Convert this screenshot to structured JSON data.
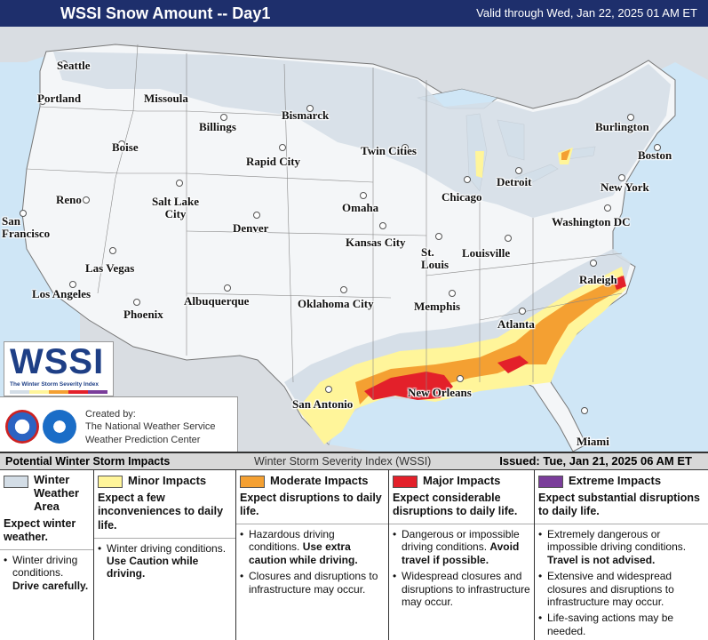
{
  "header": {
    "title": "WSSI Snow Amount -- Day1",
    "valid": "Valid through Wed, Jan 22, 2025 01 AM ET"
  },
  "colors": {
    "header_bg": "#1e2f6c",
    "winter_weather_area": "#d3dde6",
    "minor": "#fff59a",
    "moderate": "#f4a032",
    "major": "#e3202a",
    "extreme": "#7a3d9a",
    "water": "#cfe6f6",
    "land": "#f4f6f8"
  },
  "cities": [
    {
      "id": "seattle",
      "label": "Seattle"
    },
    {
      "id": "portland",
      "label": "Portland"
    },
    {
      "id": "missoula",
      "label": "Missoula"
    },
    {
      "id": "bismarck",
      "label": "Bismarck"
    },
    {
      "id": "billings",
      "label": "Billings"
    },
    {
      "id": "boise",
      "label": "Boise"
    },
    {
      "id": "rapid-city",
      "label": "Rapid City"
    },
    {
      "id": "twin-cities",
      "label": "Twin Cities"
    },
    {
      "id": "burlington",
      "label": "Burlington"
    },
    {
      "id": "boston",
      "label": "Boston"
    },
    {
      "id": "detroit",
      "label": "Detroit"
    },
    {
      "id": "chicago",
      "label": "Chicago"
    },
    {
      "id": "new-york",
      "label": "New York"
    },
    {
      "id": "reno",
      "label": "Reno"
    },
    {
      "id": "salt-lake-city",
      "label": "Salt Lake City"
    },
    {
      "id": "omaha",
      "label": "Omaha"
    },
    {
      "id": "washington-dc",
      "label": "Washington DC"
    },
    {
      "id": "san-francisco",
      "label": "San Francisco"
    },
    {
      "id": "denver",
      "label": "Denver"
    },
    {
      "id": "kansas-city",
      "label": "Kansas City"
    },
    {
      "id": "st-louis",
      "label": "St. Louis"
    },
    {
      "id": "louisville",
      "label": "Louisville"
    },
    {
      "id": "las-vegas",
      "label": "Las Vegas"
    },
    {
      "id": "raleigh",
      "label": "Raleigh"
    },
    {
      "id": "los-angeles",
      "label": "Los Angeles"
    },
    {
      "id": "albuquerque",
      "label": "Albuquerque"
    },
    {
      "id": "oklahoma-city",
      "label": "Oklahoma City"
    },
    {
      "id": "memphis",
      "label": "Memphis"
    },
    {
      "id": "phoenix",
      "label": "Phoenix"
    },
    {
      "id": "atlanta",
      "label": "Atlanta"
    },
    {
      "id": "san-antonio",
      "label": "San Antonio"
    },
    {
      "id": "new-orleans",
      "label": "New Orleans"
    },
    {
      "id": "miami",
      "label": "Miami"
    }
  ],
  "logo": {
    "text": "WSSI",
    "sub": "The Winter Storm Severity Index"
  },
  "credit": {
    "line1": "Created by:",
    "line2": "The National Weather Service",
    "line3": "Weather Prediction Center"
  },
  "legend": {
    "heading": "Potential Winter Storm Impacts",
    "index_name": "Winter Storm Severity Index (WSSI)",
    "issued": "Issued: Tue, Jan 21, 2025 06 AM ET",
    "winter": {
      "name_line1": "Winter",
      "name_line2": "Weather",
      "name_line3": "Area",
      "expect": "Expect winter weather.",
      "bullet1_plain": "Winter driving conditions.",
      "bullet1_bold": "Drive carefully."
    },
    "minor": {
      "name": "Minor Impacts",
      "expect": "Expect a few inconveniences to daily life.",
      "bullet1_plain": "Winter driving conditions.",
      "bullet1_bold": "Use Caution while driving."
    },
    "moderate": {
      "name": "Moderate Impacts",
      "expect": "Expect disruptions to daily life.",
      "bullet1_plain": "Hazardous driving conditions.",
      "bullet1_bold": "Use extra caution while driving.",
      "bullet2": "Closures and disruptions to infrastructure may occur."
    },
    "major": {
      "name": "Major Impacts",
      "expect": "Expect considerable disruptions to daily life.",
      "bullet1_plain": "Dangerous or impossible driving conditions.",
      "bullet1_bold": "Avoid travel if possible.",
      "bullet2": "Widespread closures and disruptions to infrastructure may occur."
    },
    "extreme": {
      "name": "Extreme Impacts",
      "expect": "Expect substantial disruptions to daily life.",
      "bullet1_plain": "Extremely dangerous or impossible driving conditions.",
      "bullet1_bold": "Travel is not advised.",
      "bullet2": "Extensive and widespread closures and disruptions to infrastructure may occur.",
      "bullet3": "Life-saving actions may be needed."
    }
  }
}
